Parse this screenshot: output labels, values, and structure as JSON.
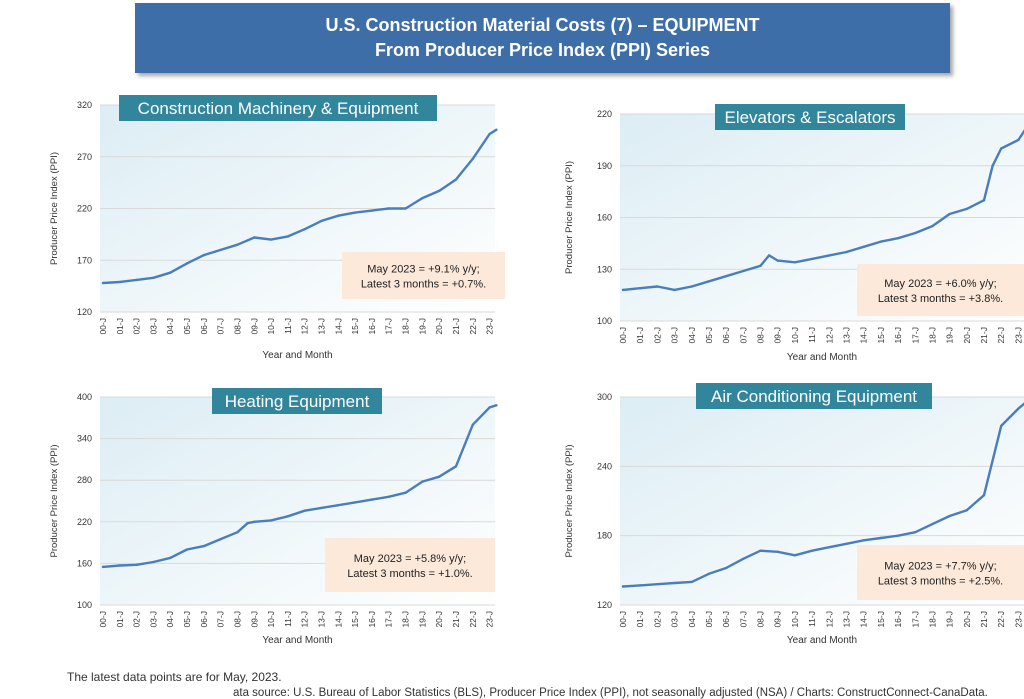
{
  "header": {
    "line1": "U.S. Construction Material Costs (7) – EQUIPMENT",
    "line2": "From Producer Price Index (PPI) Series"
  },
  "colors": {
    "banner": "#3e6ea8",
    "title_box": "#31869b",
    "line": "#4a7ebb",
    "annotation": "#fde9d9"
  },
  "footer": {
    "note": "The latest data points are for May, 2023.",
    "source": "ata source: U.S. Bureau of Labor Statistics (BLS), Producer Price Index (PPI), not seasonally adjusted (NSA) / Charts: ConstructConnect-CanaData."
  },
  "chart_data": [
    {
      "type": "line",
      "title": "Construction Machinery & Equipment",
      "xlabel": "Year and Month",
      "ylabel": "Producer Price Index (PPI)",
      "ylim": [
        120,
        320
      ],
      "yticks": [
        120,
        170,
        220,
        270,
        320
      ],
      "categories": [
        "00-J",
        "01-J",
        "02-J",
        "03-J",
        "04-J",
        "05-J",
        "06-J",
        "07-J",
        "08-J",
        "09-J",
        "10-J",
        "11-J",
        "12-J",
        "13-J",
        "14-J",
        "15-J",
        "16-J",
        "17-J",
        "18-J",
        "19-J",
        "20-J",
        "21-J",
        "22-J",
        "23-J"
      ],
      "annotation": [
        "May 2023 = +9.1% y/y;",
        "Latest 3 months = +0.7%."
      ],
      "x": [
        0,
        1,
        2,
        3,
        4,
        5,
        6,
        7,
        8,
        9,
        10,
        11,
        12,
        13,
        14,
        15,
        16,
        17,
        18,
        19,
        20,
        21,
        22,
        23,
        23.4
      ],
      "values": [
        148,
        149,
        151,
        153,
        158,
        167,
        175,
        180,
        185,
        192,
        190,
        193,
        200,
        208,
        213,
        216,
        218,
        220,
        220,
        230,
        237,
        248,
        268,
        292,
        296
      ]
    },
    {
      "type": "line",
      "title": "Elevators & Escalators",
      "xlabel": "Year and Month",
      "ylabel": "Producer Price Index (PPI)",
      "ylim": [
        100,
        220
      ],
      "yticks": [
        100,
        130,
        160,
        190,
        220
      ],
      "categories": [
        "00-J",
        "01-J",
        "02-J",
        "03-J",
        "04-J",
        "05-J",
        "06-J",
        "07-J",
        "08-J",
        "09-J",
        "10-J",
        "11-J",
        "12-J",
        "13-J",
        "14-J",
        "15-J",
        "16-J",
        "17-J",
        "18-J",
        "19-J",
        "20-J",
        "21-J",
        "22-J",
        "23-J"
      ],
      "annotation": [
        "May 2023 = +6.0% y/y;",
        "Latest 3 months = +3.8%."
      ],
      "x": [
        0,
        1,
        2,
        3,
        4,
        5,
        6,
        7,
        8,
        8.5,
        9,
        10,
        11,
        12,
        13,
        14,
        15,
        16,
        17,
        18,
        19,
        20,
        21,
        21.5,
        22,
        23,
        23.4
      ],
      "values": [
        118,
        119,
        120,
        118,
        120,
        123,
        126,
        129,
        132,
        138,
        135,
        134,
        136,
        138,
        140,
        143,
        146,
        148,
        151,
        155,
        162,
        165,
        170,
        190,
        200,
        205,
        211
      ]
    },
    {
      "type": "line",
      "title": "Heating Equipment",
      "xlabel": "Year and Month",
      "ylabel": "Producer Price Index (PPI)",
      "ylim": [
        100,
        400
      ],
      "yticks": [
        100,
        160,
        220,
        280,
        340,
        400
      ],
      "categories": [
        "00-J",
        "01-J",
        "02-J",
        "03-J",
        "04-J",
        "05-J",
        "06-J",
        "07-J",
        "08-J",
        "09-J",
        "10-J",
        "11-J",
        "12-J",
        "13-J",
        "14-J",
        "15-J",
        "16-J",
        "17-J",
        "18-J",
        "19-J",
        "20-J",
        "21-J",
        "22-J",
        "23-J"
      ],
      "annotation": [
        "May 2023 = +5.8% y/y;",
        "Latest 3 months = +1.0%."
      ],
      "x": [
        0,
        1,
        2,
        3,
        4,
        5,
        6,
        7,
        8,
        8.6,
        9,
        10,
        11,
        12,
        13,
        14,
        15,
        16,
        17,
        18,
        19,
        20,
        21,
        22,
        23,
        23.4
      ],
      "values": [
        155,
        157,
        158,
        162,
        168,
        180,
        185,
        195,
        205,
        218,
        220,
        222,
        228,
        236,
        240,
        244,
        248,
        252,
        256,
        262,
        278,
        285,
        300,
        360,
        385,
        388
      ]
    },
    {
      "type": "line",
      "title": "Air Conditioning Equipment",
      "xlabel": "Year and Month",
      "ylabel": "Producer Price Index (PPI)",
      "ylim": [
        120,
        300
      ],
      "yticks": [
        120,
        180,
        240,
        300
      ],
      "categories": [
        "00-J",
        "01-J",
        "02-J",
        "03-J",
        "04-J",
        "05-J",
        "06-J",
        "07-J",
        "08-J",
        "09-J",
        "10-J",
        "11-J",
        "12-J",
        "13-J",
        "14-J",
        "15-J",
        "16-J",
        "17-J",
        "18-J",
        "19-J",
        "20-J",
        "21-J",
        "22-J",
        "23-J"
      ],
      "annotation": [
        "May 2023 = +7.7% y/y;",
        "Latest 3 months = +2.5%."
      ],
      "x": [
        0,
        1,
        2,
        3,
        4,
        5,
        6,
        7,
        8,
        9,
        10,
        11,
        12,
        13,
        14,
        15,
        16,
        17,
        18,
        19,
        20,
        21,
        22,
        23,
        23.4
      ],
      "values": [
        136,
        137,
        138,
        139,
        140,
        147,
        152,
        160,
        167,
        166,
        163,
        167,
        170,
        173,
        176,
        178,
        180,
        183,
        190,
        197,
        202,
        215,
        275,
        290,
        295
      ]
    }
  ]
}
